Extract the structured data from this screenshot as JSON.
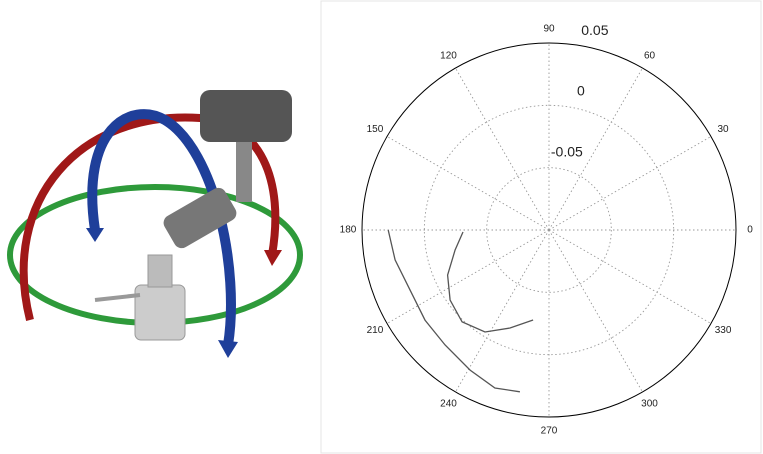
{
  "chart_data": {
    "type": "polar",
    "thetaticks": [
      0,
      30,
      60,
      90,
      120,
      150,
      180,
      210,
      240,
      270,
      300,
      330
    ],
    "rlim": [
      -0.1,
      0.05
    ],
    "rticks": [
      -0.05,
      0,
      0.05
    ],
    "grid": true,
    "series": [
      {
        "color": "#555555",
        "x": [
          181.3,
          192,
          204,
          215.3,
          226.6,
          237.9,
          248.3,
          260
        ],
        "values": [
          -0.031,
          -0.023,
          -0.011,
          -0.0028,
          0.0015,
          -0.0034,
          -0.0154,
          -0.0267
        ]
      },
      {
        "color": "#555555",
        "x": [
          180,
          191,
          203.3,
          216,
          227.9,
          240.6,
          251.1,
          259.8
        ],
        "values": [
          0.029,
          0.0258,
          0.0214,
          0.0229,
          0.0243,
          0.029,
          0.034,
          0.0319
        ]
      }
    ]
  }
}
